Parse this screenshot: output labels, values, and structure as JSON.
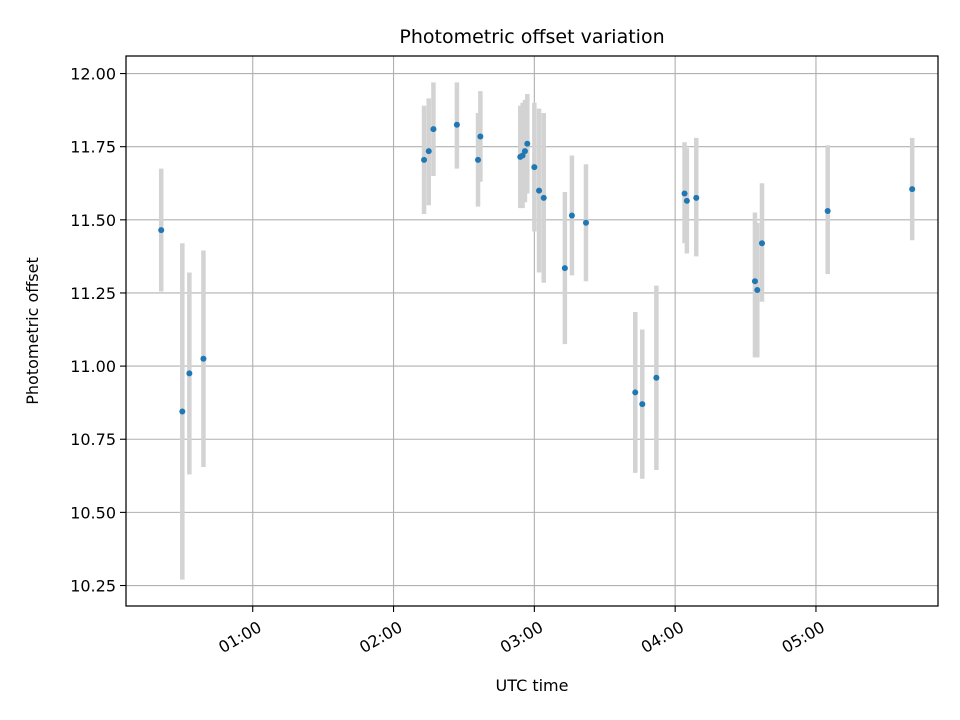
{
  "chart_data": {
    "type": "scatter",
    "title": "Photometric offset variation",
    "xlabel": "UTC time",
    "ylabel": "Photometric offset",
    "x_ticks": [
      "01:00",
      "02:00",
      "03:00",
      "04:00",
      "05:00"
    ],
    "y_ticks": [
      "10.25",
      "10.50",
      "10.75",
      "11.00",
      "11.25",
      "11.50",
      "11.75",
      "12.00"
    ],
    "xlim": [
      "00:06",
      "05:52"
    ],
    "ylim": [
      10.18,
      12.06
    ],
    "grid": true,
    "colors": {
      "point": "#1f77b4",
      "errorbar": "#d3d3d3",
      "grid": "#b0b0b0"
    },
    "points": [
      {
        "x": "00:21",
        "y": 11.465,
        "ylo": 11.255,
        "yhi": 11.675
      },
      {
        "x": "00:30",
        "y": 10.845,
        "ylo": 10.27,
        "yhi": 11.42
      },
      {
        "x": "00:33",
        "y": 10.975,
        "ylo": 10.63,
        "yhi": 11.32
      },
      {
        "x": "00:39",
        "y": 11.025,
        "ylo": 10.655,
        "yhi": 11.395
      },
      {
        "x": "02:13",
        "y": 11.705,
        "ylo": 11.52,
        "yhi": 11.89
      },
      {
        "x": "02:15",
        "y": 11.735,
        "ylo": 11.55,
        "yhi": 11.915
      },
      {
        "x": "02:17",
        "y": 11.81,
        "ylo": 11.65,
        "yhi": 11.97
      },
      {
        "x": "02:27",
        "y": 11.825,
        "ylo": 11.675,
        "yhi": 11.97
      },
      {
        "x": "02:36",
        "y": 11.705,
        "ylo": 11.545,
        "yhi": 11.865
      },
      {
        "x": "02:37",
        "y": 11.785,
        "ylo": 11.63,
        "yhi": 11.94
      },
      {
        "x": "02:54",
        "y": 11.715,
        "ylo": 11.54,
        "yhi": 11.89
      },
      {
        "x": "02:55",
        "y": 11.72,
        "ylo": 11.54,
        "yhi": 11.9
      },
      {
        "x": "02:56",
        "y": 11.735,
        "ylo": 11.56,
        "yhi": 11.91
      },
      {
        "x": "02:57",
        "y": 11.76,
        "ylo": 11.59,
        "yhi": 11.93
      },
      {
        "x": "03:00",
        "y": 11.68,
        "ylo": 11.46,
        "yhi": 11.9
      },
      {
        "x": "03:02",
        "y": 11.6,
        "ylo": 11.32,
        "yhi": 11.88
      },
      {
        "x": "03:04",
        "y": 11.575,
        "ylo": 11.285,
        "yhi": 11.865
      },
      {
        "x": "03:13",
        "y": 11.335,
        "ylo": 11.075,
        "yhi": 11.595
      },
      {
        "x": "03:16",
        "y": 11.515,
        "ylo": 11.31,
        "yhi": 11.72
      },
      {
        "x": "03:22",
        "y": 11.49,
        "ylo": 11.29,
        "yhi": 11.69
      },
      {
        "x": "03:43",
        "y": 10.91,
        "ylo": 10.635,
        "yhi": 11.185
      },
      {
        "x": "03:46",
        "y": 10.87,
        "ylo": 10.615,
        "yhi": 11.125
      },
      {
        "x": "03:52",
        "y": 10.96,
        "ylo": 10.645,
        "yhi": 11.275
      },
      {
        "x": "04:04",
        "y": 11.59,
        "ylo": 11.42,
        "yhi": 11.765
      },
      {
        "x": "04:05",
        "y": 11.565,
        "ylo": 11.385,
        "yhi": 11.745
      },
      {
        "x": "04:09",
        "y": 11.575,
        "ylo": 11.375,
        "yhi": 11.78
      },
      {
        "x": "04:34",
        "y": 11.29,
        "ylo": 11.03,
        "yhi": 11.525
      },
      {
        "x": "04:35",
        "y": 11.26,
        "ylo": 11.03,
        "yhi": 11.49
      },
      {
        "x": "04:37",
        "y": 11.42,
        "ylo": 11.22,
        "yhi": 11.625
      },
      {
        "x": "05:05",
        "y": 11.53,
        "ylo": 11.315,
        "yhi": 11.755
      },
      {
        "x": "05:41",
        "y": 11.605,
        "ylo": 11.43,
        "yhi": 11.78
      }
    ]
  }
}
